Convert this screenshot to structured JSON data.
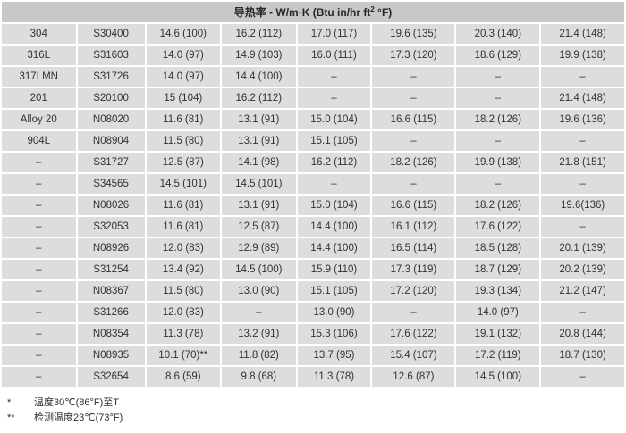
{
  "colors": {
    "header_bg": "#c7c8c8",
    "row_bg": "#dcdddd",
    "divider": "#ffffff",
    "text": "#2d2d2d"
  },
  "table": {
    "title_main": "导热率 - W/m·K (Btu in/hr ft",
    "title_sup": "2",
    "title_tail": " °F)",
    "rows": [
      [
        "304",
        "S30400",
        "14.6 (100)",
        "16.2 (112)",
        "17.0 (117)",
        "19.6 (135)",
        "20.3 (140)",
        "21.4 (148)"
      ],
      [
        "316L",
        "S31603",
        "14.0 (97)",
        "14.9 (103)",
        "16.0 (111)",
        "17.3 (120)",
        "18.6 (129)",
        "19.9 (138)"
      ],
      [
        "317LMN",
        "S31726",
        "14.0 (97)",
        "14.4 (100)",
        "–",
        "–",
        "–",
        "–"
      ],
      [
        "201",
        "S20100",
        "15 (104)",
        "16.2 (112)",
        "–",
        "–",
        "–",
        "21.4 (148)"
      ],
      [
        "Alloy 20",
        "N08020",
        "11.6 (81)",
        "13.1 (91)",
        "15.0 (104)",
        "16.6 (115)",
        "18.2 (126)",
        "19.6 (136)"
      ],
      [
        "904L",
        "N08904",
        "11.5 (80)",
        "13.1 (91)",
        "15.1 (105)",
        "–",
        "–",
        "–"
      ],
      [
        "–",
        "S31727",
        "12.5 (87)",
        "14.1 (98)",
        "16.2 (112)",
        "18.2 (126)",
        "19.9 (138)",
        "21.8 (151)"
      ],
      [
        "–",
        "S34565",
        "14.5 (101)",
        "14.5 (101)",
        "–",
        "–",
        "–",
        "–"
      ],
      [
        "–",
        "N08026",
        "11.6 (81)",
        "13.1 (91)",
        "15.0 (104)",
        "16.6 (115)",
        "18.2 (126)",
        "19.6(136)"
      ],
      [
        "–",
        "S32053",
        "11.6 (81)",
        "12.5 (87)",
        "14.4 (100)",
        "16.1 (112)",
        "17.6 (122)",
        "–"
      ],
      [
        "–",
        "N08926",
        "12.0 (83)",
        "12.9 (89)",
        "14.4 (100)",
        "16.5 (114)",
        "18.5 (128)",
        "20.1 (139)"
      ],
      [
        "–",
        "S31254",
        "13.4 (92)",
        "14.5 (100)",
        "15.9 (110)",
        "17.3 (119)",
        "18.7 (129)",
        "20.2 (139)"
      ],
      [
        "–",
        "N08367",
        "11.5 (80)",
        "13.0 (90)",
        "15.1 (105)",
        "17.2 (120)",
        "19.3 (134)",
        "21.2 (147)"
      ],
      [
        "–",
        "S31266",
        "12.0 (83)",
        "–",
        "13.0 (90)",
        "–",
        "14.0 (97)",
        "–"
      ],
      [
        "–",
        "N08354",
        "11.3 (78)",
        "13.2 (91)",
        "15.3 (106)",
        "17.6 (122)",
        "19.1 (132)",
        "20.8 (144)"
      ],
      [
        "–",
        "N08935",
        "10.1 (70)**",
        "11.8 (82)",
        "13.7 (95)",
        "15.4 (107)",
        "17.2 (119)",
        "18.7 (130)"
      ],
      [
        "–",
        "S32654",
        "8.6 (59)",
        "9.8 (68)",
        "11.3 (78)",
        "12.6 (87)",
        "14.5 (100)",
        "–"
      ]
    ]
  },
  "footnotes": [
    {
      "marker": "*",
      "text": "温度30℃(86°F)至T"
    },
    {
      "marker": "**",
      "text": "检测温度23℃(73°F)"
    }
  ]
}
